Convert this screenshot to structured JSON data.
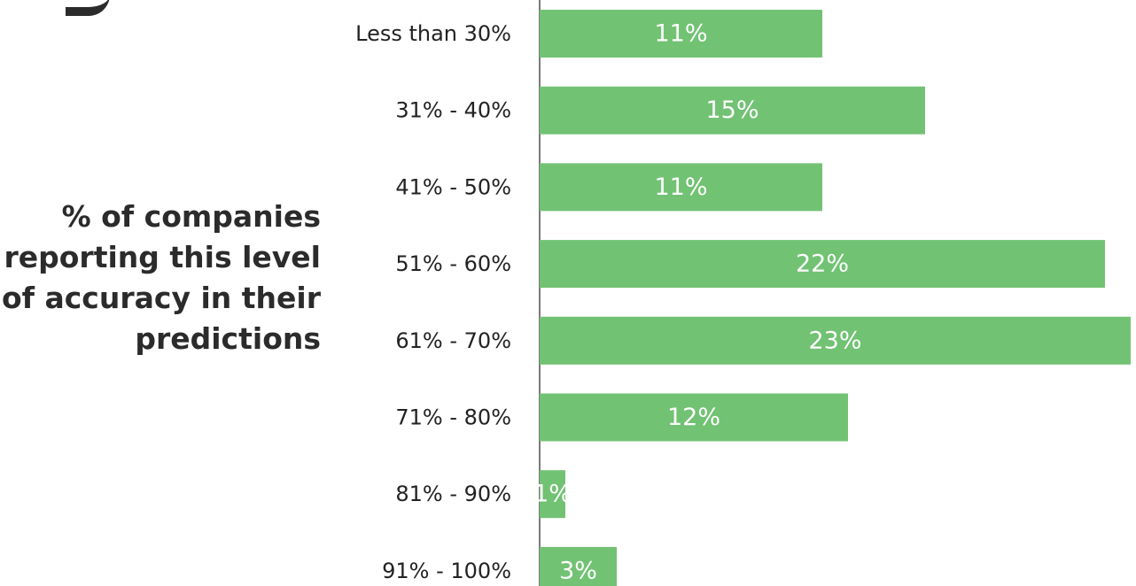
{
  "side_label": {
    "lines": [
      "% of companies",
      "reporting this level",
      "of accuracy in their",
      "predictions"
    ]
  },
  "colors": {
    "bar": "#72c274",
    "axis": "#7a7a7a",
    "value_text": "#ffffff",
    "category_text": "#222222"
  },
  "chart_data": {
    "type": "bar",
    "orientation": "horizontal",
    "categories": [
      "Less than 30%",
      "31% - 40%",
      "41% - 50%",
      "51% - 60%",
      "61% - 70%",
      "71% - 80%",
      "81% - 90%",
      "91% - 100%"
    ],
    "values": [
      11,
      15,
      11,
      22,
      23,
      12,
      1,
      3
    ],
    "value_labels": [
      "11%",
      "15%",
      "11%",
      "22%",
      "23%",
      "12%",
      "1%",
      "3%"
    ],
    "xlim": [
      0,
      23
    ],
    "grid": false,
    "legend": "none"
  }
}
